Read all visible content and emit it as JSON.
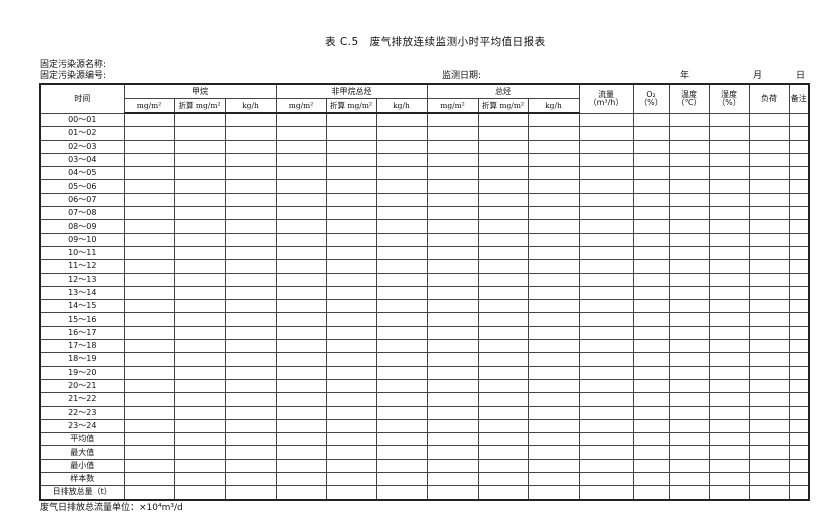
{
  "title": "表 C.5　废气排放连续监测小时平均值日报表",
  "source_name_label": "固定污染源名称:",
  "source_id_label": "固定污染源编号:",
  "date_label": "监测日期:",
  "year": "年",
  "month": "月",
  "day": "日",
  "header": {
    "time": "时间",
    "groups": [
      "甲烷",
      "非甲烷总烃",
      "总烃"
    ],
    "sub": [
      "mg/m²",
      "折算 mg/m²",
      "kg/h"
    ],
    "flow": "流量",
    "flow_unit": "（m³/h）",
    "o2": "O₂",
    "o2_unit": "（%）",
    "temp": "温度",
    "temp_unit": "（℃）",
    "humidity": "湿度",
    "humidity_unit": "（%）",
    "load": "负荷",
    "remark": "备注"
  },
  "rows": [
    "00～01",
    "01～02",
    "02～03",
    "03～04",
    "04～05",
    "05～06",
    "06～07",
    "07～08",
    "08～09",
    "09～10",
    "10～11",
    "11～12",
    "12～13",
    "13～14",
    "14～15",
    "15～16",
    "16～17",
    "17～18",
    "18～19",
    "19～20",
    "20～21",
    "21～22",
    "22～23",
    "23～24",
    "平均值",
    "最大值",
    "最小值",
    "样本数",
    "日排放总量（t）"
  ],
  "footer": "废气日排放总流量单位：×10⁴m³/d"
}
